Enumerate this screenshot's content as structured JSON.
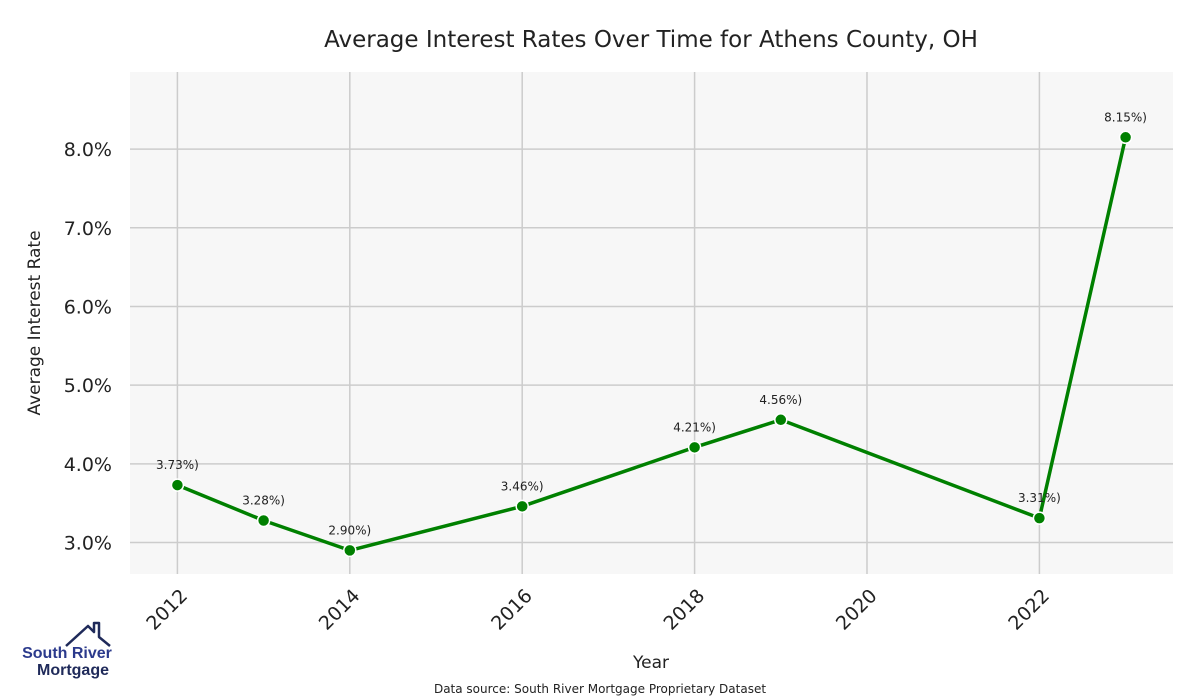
{
  "chart_data": {
    "type": "line",
    "title": "Average Interest Rates Over Time for Athens County, OH",
    "xlabel": "Year",
    "ylabel": "Average Interest Rate",
    "x": [
      2012,
      2013,
      2014,
      2016,
      2018,
      2019,
      2022,
      2023
    ],
    "values": [
      3.73,
      3.28,
      2.9,
      3.46,
      4.21,
      4.56,
      3.31,
      8.15
    ],
    "data_labels": [
      "3.73%)",
      "3.28%)",
      "2.90%)",
      "3.46%)",
      "4.21%)",
      "4.56%)",
      "3.31%)",
      "8.15%)"
    ],
    "x_ticks": [
      2012,
      2014,
      2016,
      2018,
      2020,
      2022
    ],
    "y_ticks": [
      3.0,
      4.0,
      5.0,
      6.0,
      7.0,
      8.0
    ],
    "y_tick_labels": [
      "3.0%",
      "4.0%",
      "5.0%",
      "6.0%",
      "7.0%",
      "8.0%"
    ],
    "xlim": [
      2011.45,
      2023.55
    ],
    "ylim": [
      2.6,
      8.98
    ],
    "grid": true,
    "line_color": "#008000",
    "plot_background": "#f7f7f7",
    "grid_color": "#cccccc"
  },
  "source_note": "Data source: South River Mortgage Proprietary Dataset",
  "logo": {
    "line1": "South River",
    "line2": "Mortgage",
    "color_primary": "#2b3a8c",
    "color_secondary": "#1f2a5a"
  }
}
